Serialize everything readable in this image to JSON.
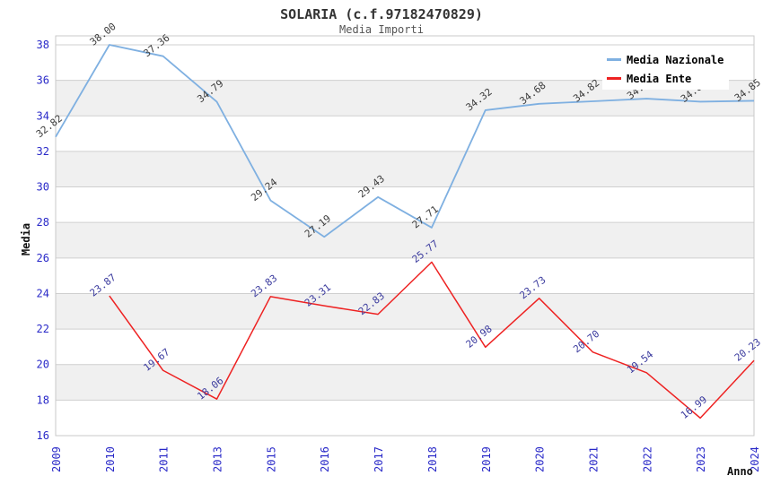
{
  "chart_data": {
    "type": "line",
    "title": "SOLARIA (c.f.97182470829)",
    "subtitle": "Media Importi",
    "xlabel": "Anno",
    "ylabel": "Media",
    "ylim": [
      16,
      38
    ],
    "y_ticks": [
      16,
      18,
      20,
      22,
      24,
      26,
      28,
      30,
      32,
      34,
      36,
      38
    ],
    "grid": "horizontal",
    "band_fill": "alternating horizontal bands",
    "legend_position": "top-right",
    "categories": [
      "2009",
      "2010",
      "2011",
      "2013",
      "2015",
      "2016",
      "2017",
      "2018",
      "2019",
      "2020",
      "2021",
      "2022",
      "2023",
      "2024"
    ],
    "series": [
      {
        "name": "Media Nazionale",
        "color": "#7fb0e1",
        "label_color": "#3c3c3c",
        "values": [
          32.82,
          38.0,
          37.36,
          34.79,
          29.24,
          27.19,
          29.43,
          27.71,
          34.32,
          34.68,
          34.82,
          34.97,
          34.8,
          34.85
        ]
      },
      {
        "name": "Media Ente",
        "color": "#ee2222",
        "label_color": "#3b3b9e",
        "values": [
          null,
          23.87,
          19.67,
          18.06,
          23.83,
          23.31,
          22.83,
          25.77,
          20.98,
          23.73,
          20.7,
          19.54,
          16.99,
          20.23
        ]
      }
    ],
    "colors": {
      "axis_tick_labels": "#2929c8",
      "gridline": "#cfcfcf",
      "band_gray": "#f0f0f0",
      "plot_border": "#c9c9c9",
      "title": "#333333",
      "subtitle": "#555555"
    }
  }
}
